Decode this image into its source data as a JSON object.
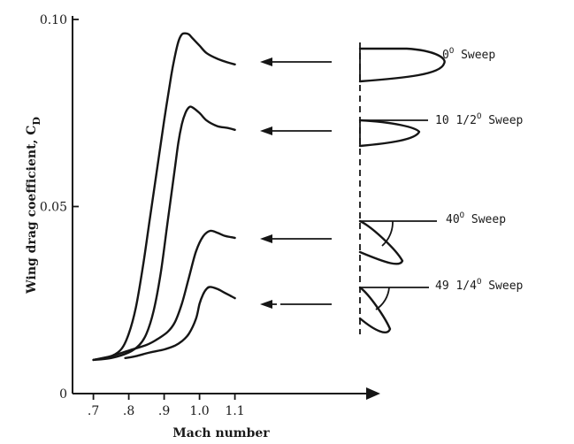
{
  "chart_data": {
    "type": "line",
    "xlabel": "Mach number",
    "ylabel": "Wing drag coefficient, C",
    "ylabel_subscript": "D",
    "xlim": [
      0.68,
      1.12
    ],
    "ylim": [
      0,
      0.1
    ],
    "x_ticks": [
      {
        "value": 0.7,
        "label": ".7"
      },
      {
        "value": 0.8,
        "label": ".8"
      },
      {
        "value": 0.9,
        "label": ".9"
      },
      {
        "value": 1.0,
        "label": "1.0"
      },
      {
        "value": 1.1,
        "label": "1.1"
      }
    ],
    "y_ticks": [
      {
        "value": 0,
        "label": "0"
      },
      {
        "value": 0.05,
        "label": "0.05"
      },
      {
        "value": 0.1,
        "label": "0.10"
      }
    ],
    "grid": false,
    "series": [
      {
        "name": "0° Sweep",
        "sweep_value": "0",
        "sweep_suffix": " Sweep",
        "x": [
          0.7,
          0.75,
          0.78,
          0.8,
          0.82,
          0.84,
          0.86,
          0.88,
          0.9,
          0.92,
          0.93,
          0.94,
          0.95,
          0.96,
          0.97,
          0.98,
          1.0,
          1.02,
          1.05,
          1.08,
          1.1
        ],
        "y": [
          0.009,
          0.01,
          0.012,
          0.016,
          0.023,
          0.034,
          0.047,
          0.06,
          0.073,
          0.085,
          0.09,
          0.094,
          0.096,
          0.0963,
          0.096,
          0.095,
          0.093,
          0.091,
          0.0895,
          0.0885,
          0.088
        ]
      },
      {
        "name": "10 1/2° Sweep",
        "sweep_value": "10 1/2",
        "sweep_suffix": " Sweep",
        "x": [
          0.7,
          0.75,
          0.8,
          0.83,
          0.85,
          0.87,
          0.89,
          0.91,
          0.93,
          0.94,
          0.95,
          0.96,
          0.97,
          0.98,
          1.0,
          1.02,
          1.05,
          1.08,
          1.1
        ],
        "y": [
          0.009,
          0.0095,
          0.011,
          0.013,
          0.016,
          0.022,
          0.032,
          0.046,
          0.06,
          0.067,
          0.072,
          0.075,
          0.0765,
          0.0765,
          0.075,
          0.073,
          0.0715,
          0.071,
          0.0705
        ]
      },
      {
        "name": "40° Sweep",
        "sweep_value": "40",
        "sweep_suffix": " Sweep",
        "x": [
          0.7,
          0.75,
          0.8,
          0.85,
          0.88,
          0.91,
          0.93,
          0.95,
          0.97,
          0.99,
          1.01,
          1.03,
          1.05,
          1.07,
          1.09,
          1.1
        ],
        "y": [
          0.009,
          0.01,
          0.0115,
          0.013,
          0.0145,
          0.0165,
          0.019,
          0.024,
          0.031,
          0.038,
          0.042,
          0.0435,
          0.043,
          0.0422,
          0.0418,
          0.0416
        ]
      },
      {
        "name": "49 1/4° Sweep",
        "sweep_value": "49 1/4",
        "sweep_suffix": " Sweep",
        "x": [
          0.79,
          0.82,
          0.86,
          0.9,
          0.93,
          0.95,
          0.97,
          0.99,
          1.0,
          1.01,
          1.02,
          1.03,
          1.05,
          1.07,
          1.09,
          1.1
        ],
        "y": [
          0.0095,
          0.01,
          0.011,
          0.0118,
          0.0128,
          0.014,
          0.016,
          0.02,
          0.024,
          0.0265,
          0.028,
          0.0285,
          0.028,
          0.027,
          0.026,
          0.0255
        ]
      }
    ]
  }
}
